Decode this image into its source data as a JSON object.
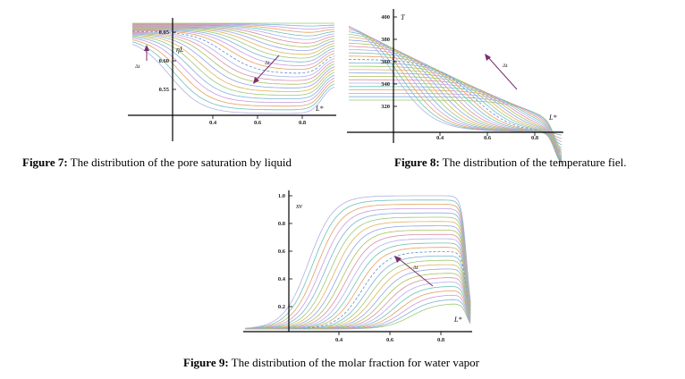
{
  "fig7": {
    "caption_label": "Figure 7:",
    "caption_text": " The distribution of the pore saturation by liquid",
    "ylabel": "ηL",
    "y_ticks": [
      "0.65",
      "0.60",
      "0.55"
    ],
    "x_ticks": [
      "0.4",
      "0.6",
      "0.8"
    ],
    "dt_left": "Δt",
    "dt_arrow_label": "Δt",
    "xlabel": "L*"
  },
  "fig8": {
    "caption_label": "Figure 8:",
    "caption_text": " The distribution of the temperature fiel.",
    "ylabel": "T",
    "y_ticks": [
      "400",
      "380",
      "360",
      "340",
      "320"
    ],
    "x_ticks": [
      "0.4",
      "0.6",
      "0.8"
    ],
    "dt_arrow_label": "Δt",
    "xlabel": "L*"
  },
  "fig9": {
    "caption_label": "Figure 9:",
    "caption_text": " The distribution of the molar fraction for water vapor",
    "ylabel": "xv",
    "y_ticks": [
      "1.0",
      "0.8",
      "0.6",
      "0.4",
      "0.2"
    ],
    "x_ticks": [
      "0.4",
      "0.6",
      "0.8"
    ],
    "dt_arrow_label": "Δt",
    "xlabel": "L*"
  },
  "colors": {
    "curves": [
      "#9bc97a",
      "#7fb3d5",
      "#c79be0",
      "#e3a15f",
      "#6fc0b8",
      "#b0b0e8",
      "#d98fa8",
      "#a8c25c",
      "#8fa6e6",
      "#e0b25c"
    ],
    "arrow": "#7a2f6e",
    "dashed": "#5a8fd0"
  }
}
